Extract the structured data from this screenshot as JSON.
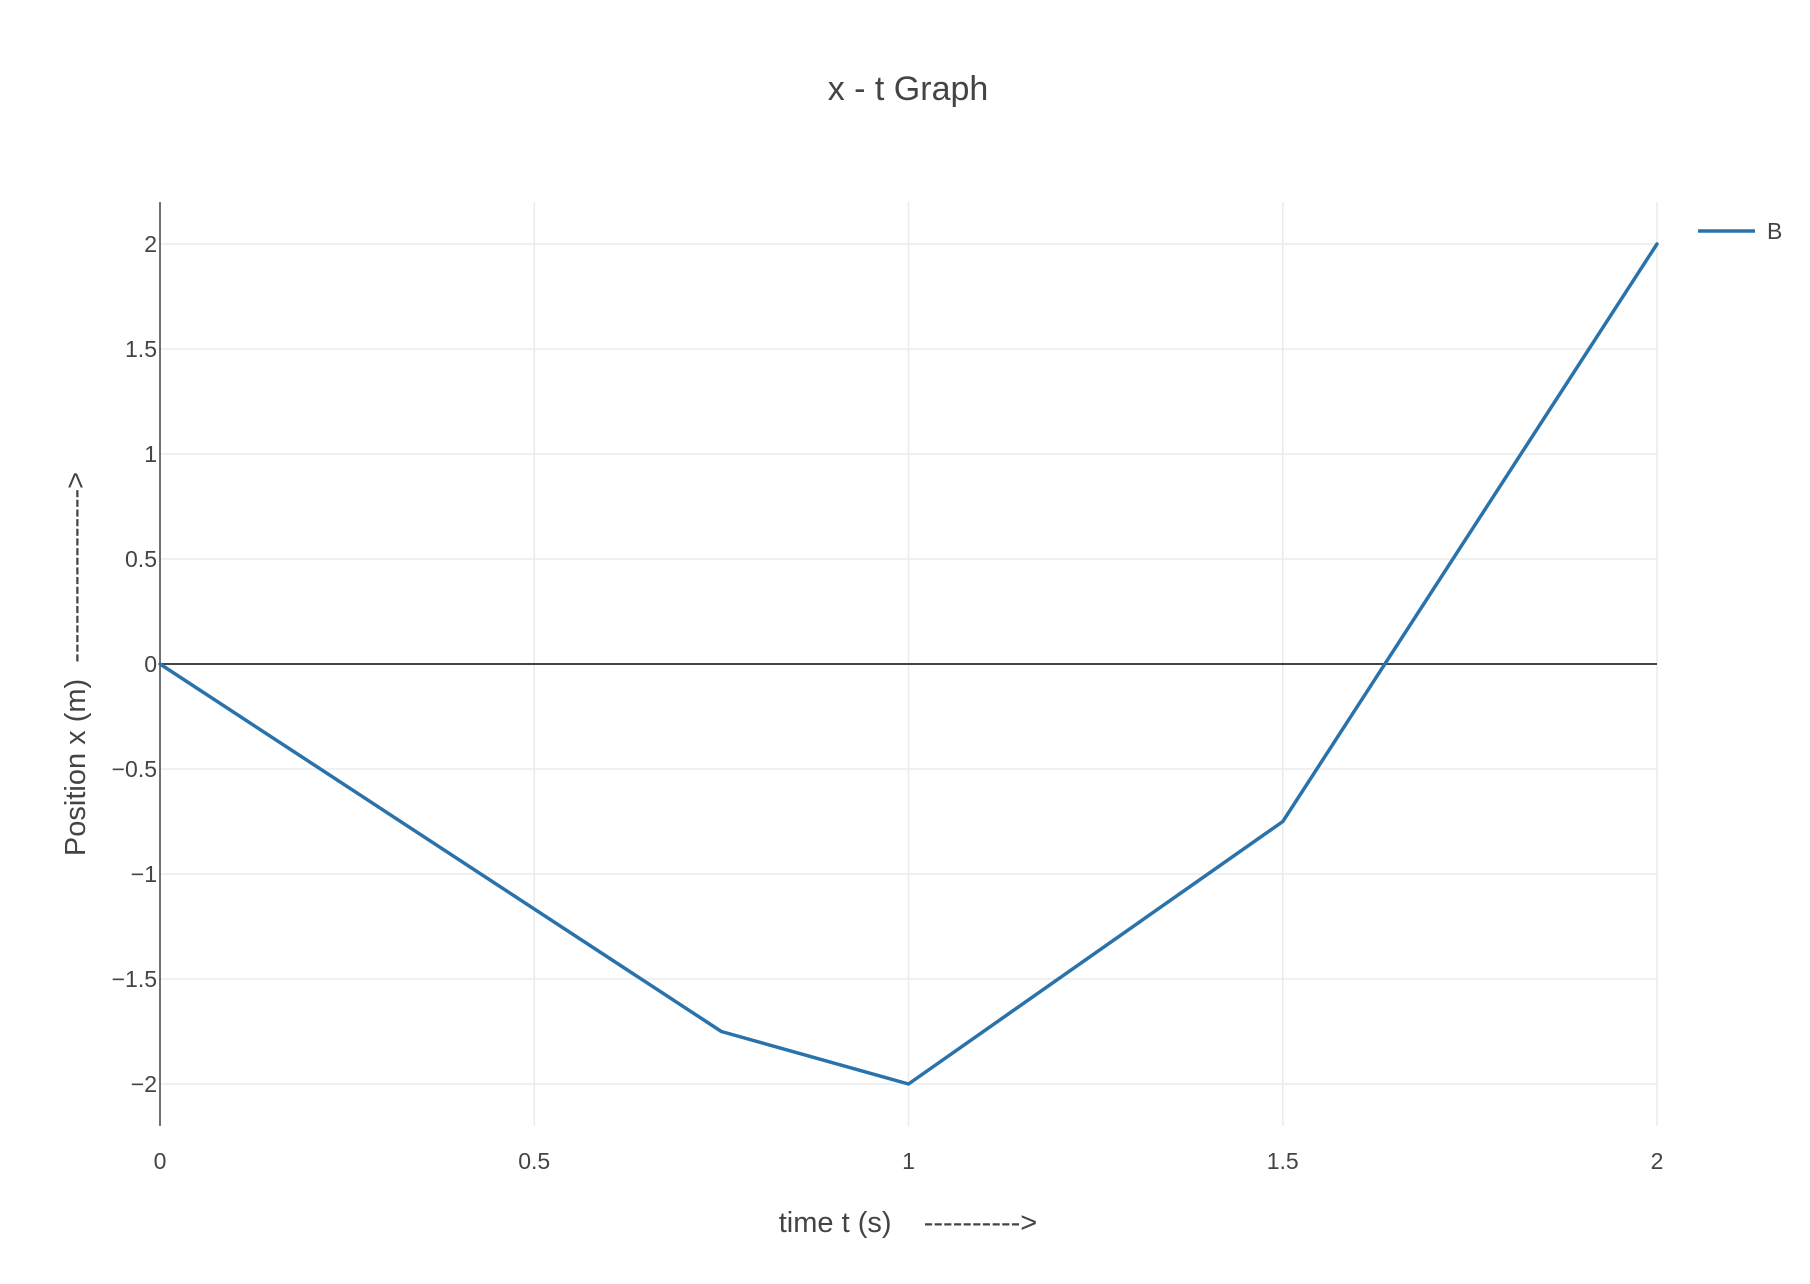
{
  "chart_data": {
    "type": "line",
    "title": "x - t Graph",
    "xlabel": "time t (s)    ---------->",
    "ylabel": "Position x (m)  ------------------>",
    "xlim": [
      0,
      2
    ],
    "ylim": [
      -2.2,
      2.2
    ],
    "x_ticks": [
      0,
      0.5,
      1,
      1.5,
      2
    ],
    "x_tick_labels": [
      "0",
      "0.5",
      "1",
      "1.5",
      "2"
    ],
    "y_ticks": [
      2,
      1.5,
      1,
      0.5,
      0,
      -0.5,
      -1,
      -1.5,
      -2
    ],
    "y_tick_labels": [
      "2",
      "1.5",
      "1",
      "0.5",
      "0",
      "−0.5",
      "−1",
      "−1.5",
      "−2"
    ],
    "grid": true,
    "legend_position": "top-right",
    "series": [
      {
        "name": "B",
        "color": "#2a72aa",
        "x": [
          0,
          0.75,
          1,
          1.5,
          2
        ],
        "y": [
          0,
          -1.75,
          -2,
          -0.75,
          2
        ]
      }
    ]
  }
}
